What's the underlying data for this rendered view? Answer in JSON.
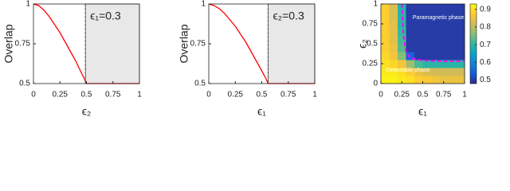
{
  "chart_data": [
    {
      "type": "line",
      "xlabel": "ϵ₂",
      "ylabel": "Overlap",
      "annotation": "ϵ₁=0.3",
      "x": [
        0,
        0.05,
        0.1,
        0.15,
        0.2,
        0.25,
        0.3,
        0.35,
        0.4,
        0.45,
        0.48,
        0.5,
        0.75,
        1
      ],
      "values": [
        1,
        0.99,
        0.96,
        0.92,
        0.87,
        0.82,
        0.76,
        0.7,
        0.64,
        0.57,
        0.53,
        0.5,
        0.5,
        0.5
      ],
      "color": "#ff0000",
      "threshold": 0.49,
      "shade_color": "#e8e8e8",
      "xlim": [
        0,
        1
      ],
      "xticks": [
        0,
        0.25,
        0.5,
        0.75,
        1
      ],
      "ylim": [
        0.5,
        1
      ],
      "yticks": [
        0.5,
        0.75,
        1
      ]
    },
    {
      "type": "line",
      "xlabel": "ϵ₁",
      "ylabel": "Overlap",
      "annotation": "ϵ₂=0.3",
      "x": [
        0,
        0.05,
        0.1,
        0.15,
        0.2,
        0.25,
        0.3,
        0.35,
        0.4,
        0.45,
        0.5,
        0.54,
        0.56,
        0.75,
        1
      ],
      "values": [
        1,
        0.99,
        0.97,
        0.94,
        0.9,
        0.86,
        0.81,
        0.76,
        0.7,
        0.64,
        0.58,
        0.53,
        0.5,
        0.5,
        0.5
      ],
      "color": "#ff0000",
      "threshold": 0.56,
      "shade_color": "#e8e8e8",
      "xlim": [
        0,
        1
      ],
      "xticks": [
        0,
        0.25,
        0.5,
        0.75,
        1
      ],
      "ylim": [
        0.5,
        1
      ],
      "yticks": [
        0.5,
        0.75,
        1
      ]
    },
    {
      "type": "heatmap",
      "xlabel": "ϵ₁",
      "ylabel": "ϵ₂",
      "annotations": [
        "Paramagnetic phase",
        "Detectable phase"
      ],
      "x": [
        0.05,
        0.15,
        0.25,
        0.35,
        0.45,
        0.55,
        0.65,
        0.75,
        0.85,
        0.95
      ],
      "y": [
        0.05,
        0.15,
        0.25,
        0.35,
        0.45,
        0.55,
        0.65,
        0.75,
        0.85,
        0.95
      ],
      "z": [
        [
          0.92,
          0.92,
          0.91,
          0.9,
          0.88,
          0.87,
          0.86,
          0.85,
          0.85,
          0.85
        ],
        [
          0.91,
          0.91,
          0.9,
          0.88,
          0.85,
          0.83,
          0.82,
          0.82,
          0.82,
          0.82
        ],
        [
          0.9,
          0.89,
          0.86,
          0.78,
          0.72,
          0.7,
          0.7,
          0.7,
          0.7,
          0.7
        ],
        [
          0.89,
          0.86,
          0.76,
          0.55,
          0.5,
          0.5,
          0.5,
          0.5,
          0.5,
          0.5
        ],
        [
          0.88,
          0.85,
          0.73,
          0.5,
          0.5,
          0.5,
          0.5,
          0.5,
          0.5,
          0.5
        ],
        [
          0.88,
          0.84,
          0.72,
          0.5,
          0.5,
          0.5,
          0.5,
          0.5,
          0.5,
          0.5
        ],
        [
          0.88,
          0.84,
          0.71,
          0.5,
          0.5,
          0.5,
          0.5,
          0.5,
          0.5,
          0.5
        ],
        [
          0.88,
          0.84,
          0.7,
          0.5,
          0.5,
          0.5,
          0.5,
          0.5,
          0.5,
          0.5
        ],
        [
          0.88,
          0.83,
          0.7,
          0.5,
          0.5,
          0.5,
          0.5,
          0.5,
          0.5,
          0.5
        ],
        [
          0.88,
          0.83,
          0.69,
          0.5,
          0.5,
          0.5,
          0.5,
          0.5,
          0.5,
          0.5
        ]
      ],
      "boundary": {
        "x": [
          0.25,
          0.27,
          0.3,
          0.35,
          0.5,
          0.75,
          1
        ],
        "y": [
          1,
          0.6,
          0.4,
          0.32,
          0.29,
          0.28,
          0.28
        ],
        "color": "#ff00ff"
      },
      "colormap": [
        "#352a87",
        "#0f5cdd",
        "#1481d6",
        "#06a4ca",
        "#2eb7a4",
        "#87bf77",
        "#d1bb59",
        "#fec832",
        "#f9fb0e"
      ],
      "clim": [
        0.48,
        0.93
      ],
      "cticks": [
        0.5,
        0.6,
        0.7,
        0.8,
        0.9
      ],
      "xlim": [
        0,
        1
      ],
      "xticks": [
        0,
        0.25,
        0.5,
        0.75,
        1
      ],
      "ylim": [
        0,
        1
      ],
      "yticks": [
        0,
        0.25,
        0.5,
        0.75,
        1
      ]
    }
  ]
}
